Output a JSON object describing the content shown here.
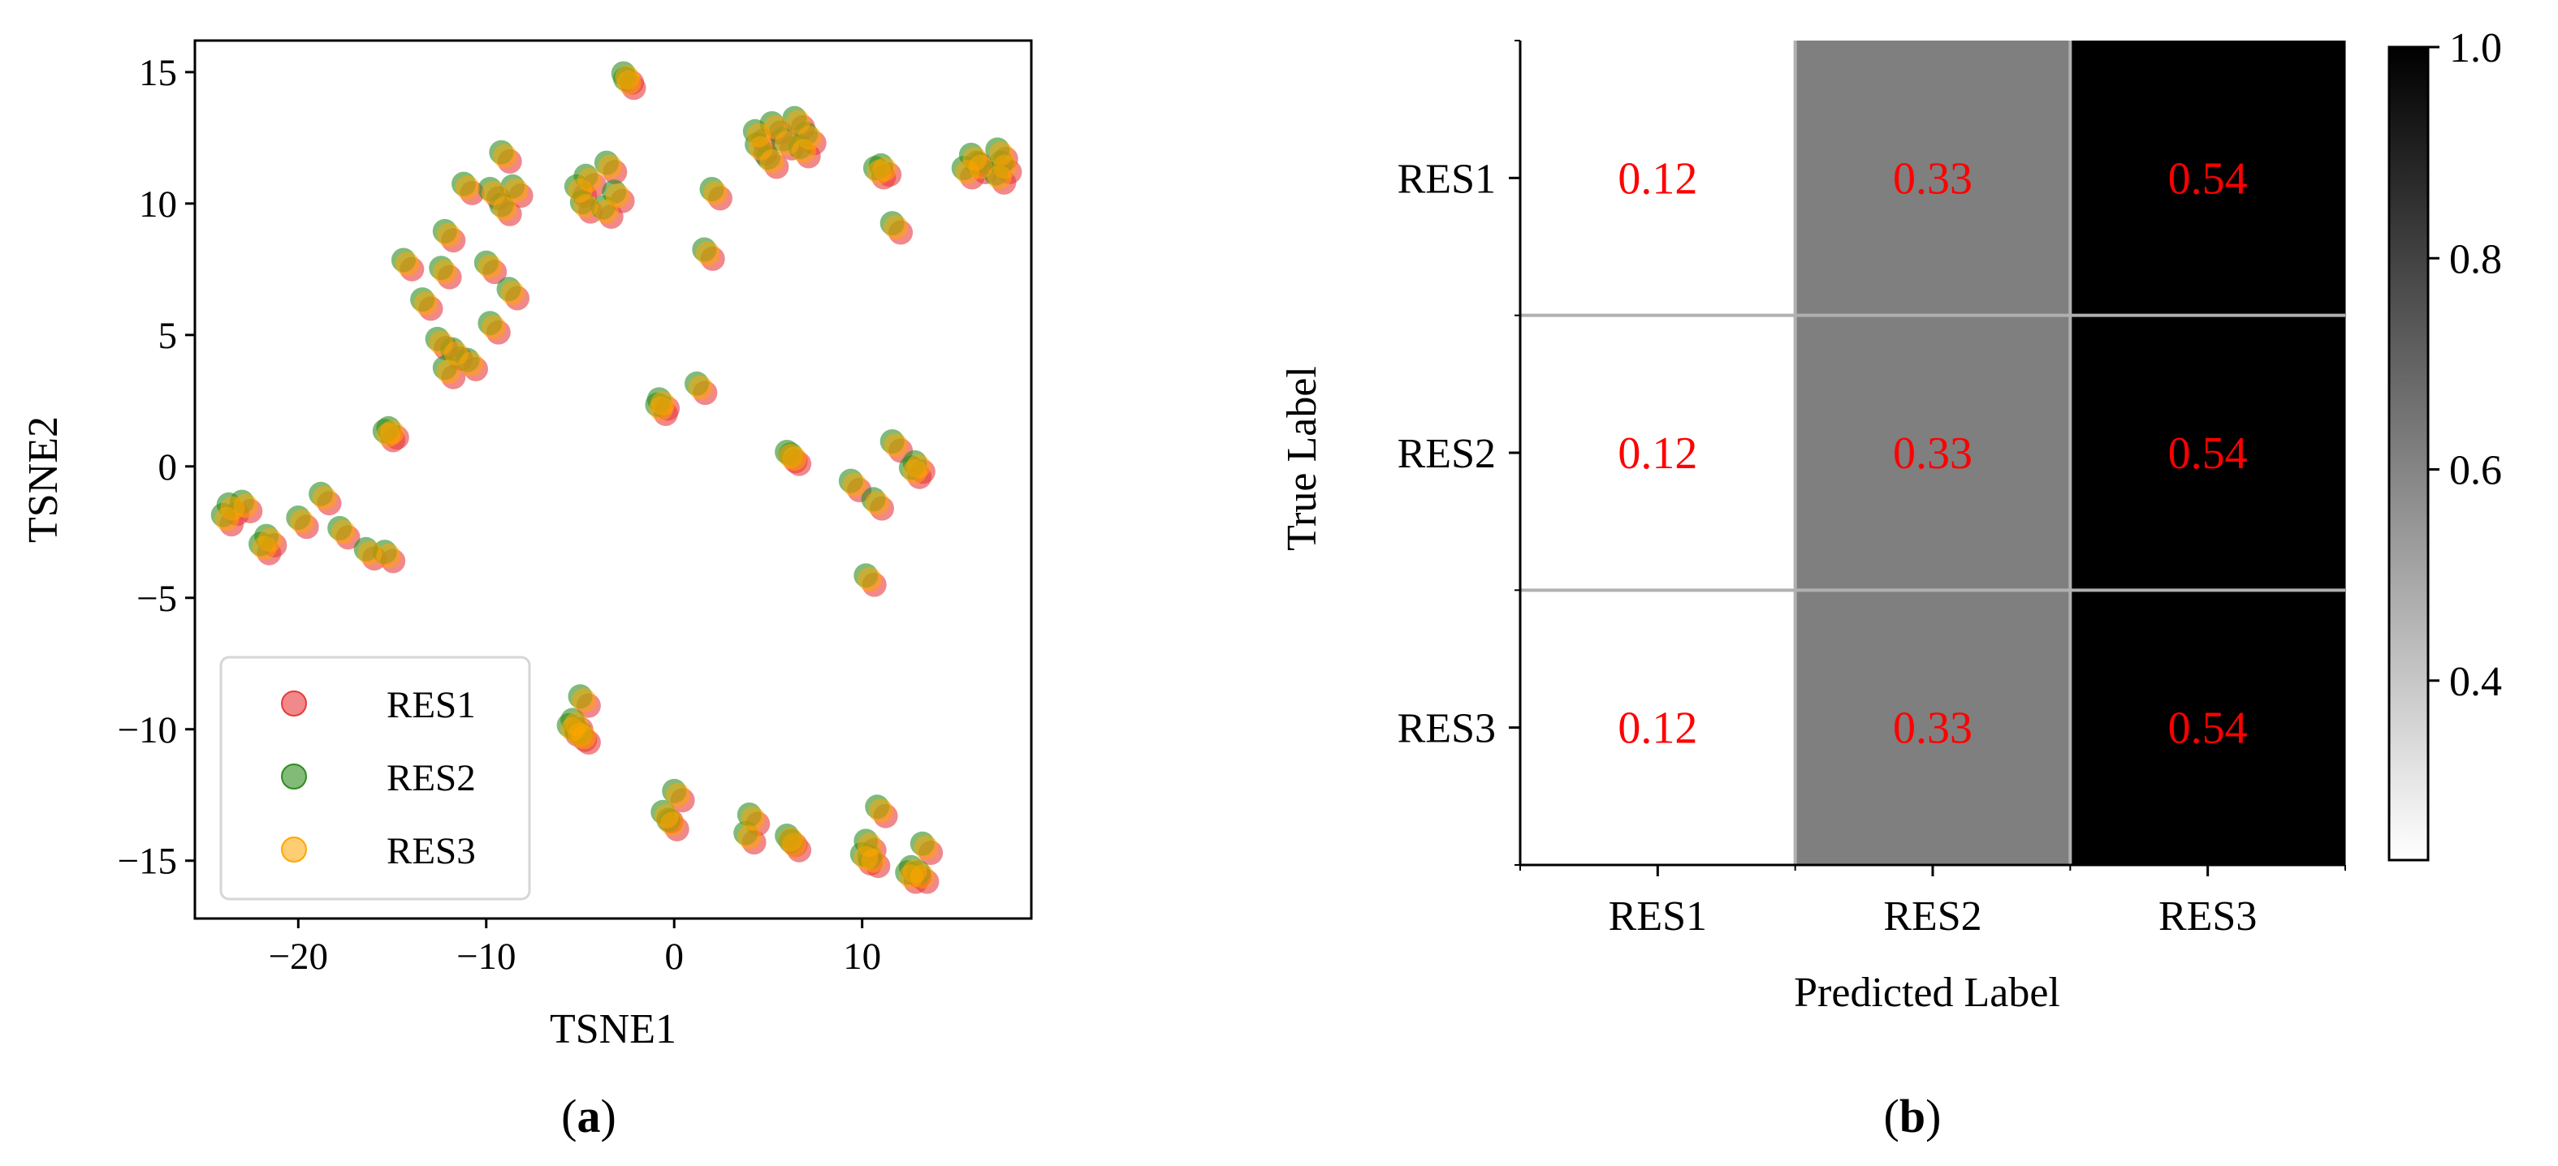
{
  "panels": {
    "a": "a",
    "b": "b"
  },
  "chart_data": [
    {
      "type": "scatter",
      "xlabel": "TSNE1",
      "ylabel": "TSNE2",
      "xlim": [
        -25.5,
        19
      ],
      "ylim": [
        -17.2,
        16.2
      ],
      "xticks": [
        -20,
        -10,
        0,
        10
      ],
      "xtick_labels": [
        "−20",
        "−10",
        "0",
        "10"
      ],
      "yticks": [
        15,
        10,
        5,
        0,
        -5,
        -10,
        -15
      ],
      "ytick_labels": [
        "15",
        "10",
        "5",
        "0",
        "−5",
        "−10",
        "−15"
      ],
      "legend_position": "lower-left",
      "grid": false,
      "points": [
        [
          -2.5,
          14.8
        ],
        [
          -2.4,
          14.6
        ],
        [
          -9.0,
          11.8
        ],
        [
          -11.0,
          10.6
        ],
        [
          -8.4,
          10.5
        ],
        [
          -9.6,
          10.4
        ],
        [
          -9.0,
          9.8
        ],
        [
          -12.0,
          8.8
        ],
        [
          -14.2,
          7.7
        ],
        [
          -9.8,
          7.6
        ],
        [
          -12.2,
          7.4
        ],
        [
          -8.6,
          6.6
        ],
        [
          -13.2,
          6.2
        ],
        [
          -9.6,
          5.3
        ],
        [
          -12.4,
          4.7
        ],
        [
          -11.6,
          4.3
        ],
        [
          -10.8,
          3.9
        ],
        [
          -12.0,
          3.6
        ],
        [
          -3.4,
          11.4
        ],
        [
          -4.5,
          10.9
        ],
        [
          -5.0,
          10.5
        ],
        [
          -3.0,
          10.3
        ],
        [
          -4.7,
          9.9
        ],
        [
          -3.6,
          9.7
        ],
        [
          2.2,
          10.4
        ],
        [
          1.8,
          8.1
        ],
        [
          1.4,
          3.0
        ],
        [
          -0.6,
          2.4
        ],
        [
          -0.7,
          2.2
        ],
        [
          4.5,
          12.6
        ],
        [
          5.4,
          12.9
        ],
        [
          6.6,
          13.1
        ],
        [
          7.2,
          12.5
        ],
        [
          6.9,
          12.0
        ],
        [
          4.6,
          12.1
        ],
        [
          6.0,
          12.3
        ],
        [
          5.2,
          11.6
        ],
        [
          11.2,
          11.3
        ],
        [
          10.9,
          11.2
        ],
        [
          11.8,
          9.1
        ],
        [
          16.0,
          11.7
        ],
        [
          17.4,
          11.9
        ],
        [
          16.3,
          11.4
        ],
        [
          15.6,
          11.2
        ],
        [
          17.6,
          11.4
        ],
        [
          17.3,
          11.0
        ],
        [
          -23.5,
          -1.6
        ],
        [
          -23.8,
          -2.0
        ],
        [
          -22.8,
          -1.5
        ],
        [
          -21.5,
          -2.8
        ],
        [
          -21.8,
          -3.1
        ],
        [
          -18.6,
          -1.2
        ],
        [
          -19.8,
          -2.1
        ],
        [
          -17.6,
          -2.5
        ],
        [
          -16.2,
          -3.3
        ],
        [
          -15.2,
          -3.4
        ],
        [
          -15.2,
          1.2
        ],
        [
          -15.0,
          1.3
        ],
        [
          6.2,
          0.4
        ],
        [
          6.4,
          0.3
        ],
        [
          11.8,
          0.8
        ],
        [
          13.0,
          0.0
        ],
        [
          12.8,
          -0.2
        ],
        [
          9.6,
          -0.7
        ],
        [
          10.8,
          -1.4
        ],
        [
          10.4,
          -4.3
        ],
        [
          -5.2,
          -9.8
        ],
        [
          -5.0,
          -10.2
        ],
        [
          -4.8,
          -10.3
        ],
        [
          -4.8,
          -8.9
        ],
        [
          -5.4,
          -10.0
        ],
        [
          0.2,
          -12.5
        ],
        [
          -0.4,
          -13.3
        ],
        [
          -0.1,
          -13.6
        ],
        [
          4.2,
          -13.4
        ],
        [
          4.0,
          -14.1
        ],
        [
          6.2,
          -14.2
        ],
        [
          6.4,
          -14.4
        ],
        [
          10.4,
          -14.4
        ],
        [
          10.2,
          -14.9
        ],
        [
          10.6,
          -15.0
        ],
        [
          11.0,
          -13.1
        ],
        [
          12.6,
          -15.6
        ],
        [
          13.2,
          -15.6
        ],
        [
          13.4,
          -14.5
        ],
        [
          12.8,
          -15.4
        ]
      ],
      "series": [
        {
          "name": "RES1",
          "color": "#e8393c",
          "alpha": 0.6,
          "offset": [
            0.25,
            -0.2
          ]
        },
        {
          "name": "RES2",
          "color": "#2f8c1f",
          "alpha": 0.6,
          "offset": [
            -0.2,
            0.15
          ]
        },
        {
          "name": "RES3",
          "color": "#ffa500",
          "alpha": 0.55,
          "offset": [
            0,
            0
          ]
        }
      ]
    },
    {
      "type": "heatmap",
      "xlabel": "Predicted Label",
      "ylabel": "True Label",
      "x_categories": [
        "RES1",
        "RES2",
        "RES3"
      ],
      "y_categories": [
        "RES1",
        "RES2",
        "RES3"
      ],
      "values": [
        [
          0.12,
          0.33,
          0.54
        ],
        [
          0.12,
          0.33,
          0.54
        ],
        [
          0.12,
          0.33,
          0.54
        ]
      ],
      "value_labels": [
        [
          "0.12",
          "0.33",
          "0.54"
        ],
        [
          "0.12",
          "0.33",
          "0.54"
        ],
        [
          "0.12",
          "0.33",
          "0.54"
        ]
      ],
      "cell_fill_colors": [
        "#ffffff",
        "#7f7f7f",
        "#000000"
      ],
      "label_color": "#ff0000",
      "colormap": "gray_r",
      "colorbar": {
        "range": [
          0.23,
          1.0
        ],
        "ticks": [
          1.0,
          0.8,
          0.6,
          0.4
        ],
        "tick_labels": [
          "1.0",
          "0.8",
          "0.6",
          "0.4"
        ]
      },
      "grid": true,
      "grid_color": "#b0b0b0"
    }
  ]
}
